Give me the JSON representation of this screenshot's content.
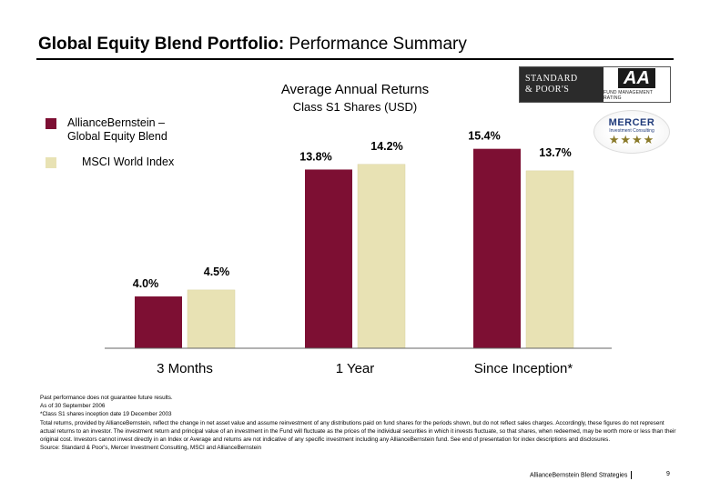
{
  "header": {
    "title_bold": "Global Equity Blend Portfolio:",
    "title_rest": " Performance Summary"
  },
  "chart_data": {
    "type": "bar",
    "title": "Average Annual Returns",
    "subtitle": "Class S1 Shares (USD)",
    "categories": [
      "3 Months",
      "1 Year",
      "Since Inception*"
    ],
    "series": [
      {
        "name": "AllianceBernstein – Global Equity Blend",
        "values": [
          4.0,
          13.8,
          15.4
        ],
        "labels": [
          "4.0%",
          "13.8%",
          "15.4%"
        ],
        "color": "#7d0f33"
      },
      {
        "name": "MSCI World Index",
        "values": [
          4.5,
          14.2,
          13.7
        ],
        "labels": [
          "4.5%",
          "14.2%",
          "13.7%"
        ],
        "color": "#e8e2b4"
      }
    ],
    "legend": {
      "placement": "top-left",
      "entries": [
        {
          "line1": "AllianceBernstein –",
          "line2": "Global Equity Blend",
          "color": "#7d0f33"
        },
        {
          "line1": "MSCI World Index",
          "color": "#e8e2b4"
        }
      ]
    },
    "ylim": [
      0,
      16.5
    ],
    "grid": false
  },
  "logos": {
    "sp_line1": "STANDARD",
    "sp_line2": "& POOR'S",
    "sp_rating": "AA",
    "sp_sub": "FUND MANAGEMENT RATING",
    "mercer_name": "MERCER",
    "mercer_sub": "Investment Consulting",
    "mercer_stars": "★★★★"
  },
  "footnotes": [
    "Past performance does not guarantee future results.",
    "As of 30 September 2006",
    "*Class S1 shares inception date 19 December 2003",
    "Total returns, provided by AllianceBernstein, reflect the change in net asset value and assume reinvestment of any distributions paid on fund shares for the periods shown, but do not reflect sales charges. Accordingly, these figures do not represent actual returns to an investor. The investment return and principal value of an investment in the Fund will fluctuate as the prices of the individual securities in which it invests fluctuate, so that shares, when redeemed, may be worth more or less than their original cost. Investors cannot invest directly in an Index or Average and returns are not indicative of any specific investment including any AllianceBernstein fund. See end of presentation for index descriptions and disclosures.",
    "Source: Standard & Poor's, Mercer Investment Consulting, MSCI and AllianceBernstein"
  ],
  "footer": {
    "label": "AllianceBernstein Blend Strategies",
    "page": "9"
  }
}
